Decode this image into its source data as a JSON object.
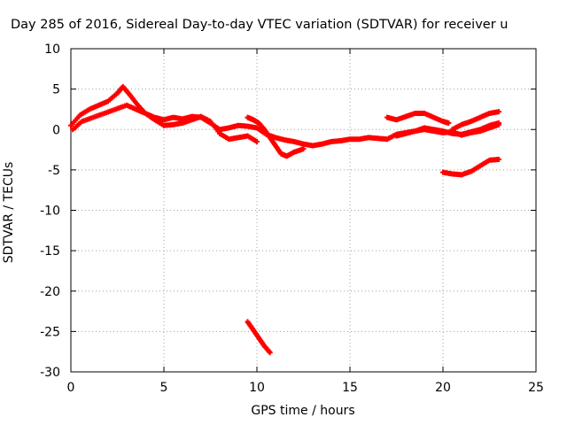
{
  "chart_data": {
    "type": "scatter",
    "title": "Day 285 of 2016, Sidereal Day-to-day VTEC variation (SDTVAR) for receiver u",
    "xlabel": "GPS time / hours",
    "ylabel": "SDTVAR / TECUs",
    "xlim": [
      0,
      25
    ],
    "ylim": [
      -30,
      10
    ],
    "xticks": [
      "0",
      "5",
      "10",
      "15",
      "20",
      "25"
    ],
    "yticks": [
      "10",
      "5",
      "0",
      "-5",
      "-10",
      "-15",
      "-20",
      "-25",
      "-30"
    ],
    "grid": true,
    "marker_color": "#ff0000",
    "series": [
      {
        "x": [
          0.0,
          0.5,
          1.0,
          1.5,
          2.0,
          2.5,
          2.8,
          3.2,
          3.6,
          4.0,
          4.5,
          5.0,
          5.5,
          6.0,
          6.5,
          7.0,
          7.5,
          8.0,
          8.5,
          9.0,
          9.5,
          10.0,
          10.5,
          11.0,
          11.5,
          12.0,
          12.5,
          13.0,
          13.5,
          14.0,
          14.5,
          15.0,
          15.5,
          16.0,
          16.5,
          17.0,
          17.5,
          18.0,
          18.5,
          19.0,
          19.5,
          20.0,
          20.5,
          21.0,
          21.5,
          22.0,
          22.5,
          23.0
        ],
        "y": [
          0.5,
          1.8,
          2.5,
          3.0,
          3.5,
          4.5,
          5.3,
          4.2,
          3.0,
          2.0,
          1.5,
          1.2,
          1.5,
          1.3,
          1.6,
          1.5,
          0.8,
          0.0,
          0.2,
          0.5,
          0.4,
          0.2,
          -0.6,
          -1.0,
          -1.3,
          -1.5,
          -1.8,
          -2.0,
          -1.8,
          -1.5,
          -1.4,
          -1.2,
          -1.2,
          -1.0,
          -1.1,
          -1.2,
          -0.6,
          -0.4,
          -0.2,
          0.0,
          -0.2,
          -0.4,
          -0.3,
          -0.7,
          -0.4,
          -0.2,
          0.2,
          0.6
        ]
      },
      {
        "x": [
          0.1,
          0.6,
          1.2,
          1.8,
          2.4,
          3.0,
          3.5,
          4.0,
          4.5,
          5.0,
          5.5,
          6.0,
          6.5,
          7.0,
          7.5,
          8.0,
          8.5,
          9.0,
          9.5,
          10.0
        ],
        "y": [
          0.0,
          1.0,
          1.5,
          2.0,
          2.5,
          3.0,
          2.5,
          2.0,
          1.2,
          0.5,
          0.6,
          0.8,
          1.2,
          1.6,
          1.0,
          -0.5,
          -1.2,
          -1.0,
          -0.8,
          -1.5
        ]
      },
      {
        "x": [
          9.5,
          9.8,
          10.1,
          10.4,
          10.7,
          11.0,
          11.3,
          11.6,
          12.0,
          12.5
        ],
        "y": [
          1.5,
          1.2,
          0.8,
          0.0,
          -1.0,
          -2.0,
          -3.0,
          -3.3,
          -2.8,
          -2.4
        ]
      },
      {
        "x": [
          17.0,
          17.5,
          18.0,
          18.5,
          19.0,
          19.5,
          20.0,
          20.3
        ],
        "y": [
          1.5,
          1.2,
          1.6,
          2.0,
          2.0,
          1.5,
          1.0,
          0.8
        ]
      },
      {
        "x": [
          17.5,
          18.0,
          18.5,
          19.0,
          19.5,
          20.0,
          20.5,
          21.0,
          21.5,
          22.0,
          22.5,
          23.0
        ],
        "y": [
          -0.8,
          -0.5,
          -0.2,
          0.2,
          0.0,
          -0.2,
          -0.5,
          -0.6,
          -0.3,
          0.0,
          0.5,
          0.8
        ]
      },
      {
        "x": [
          20.5,
          21.0,
          21.5,
          22.0,
          22.5,
          23.0
        ],
        "y": [
          0.0,
          0.6,
          1.0,
          1.5,
          2.0,
          2.2
        ]
      },
      {
        "x": [
          20.0,
          20.5,
          21.0,
          21.5,
          22.0,
          22.5,
          23.0
        ],
        "y": [
          -5.3,
          -5.5,
          -5.6,
          -5.2,
          -4.5,
          -3.8,
          -3.7
        ]
      },
      {
        "x": [
          9.5,
          9.8,
          10.1,
          10.4,
          10.7
        ],
        "y": [
          -23.8,
          -24.8,
          -25.8,
          -26.8,
          -27.6
        ]
      }
    ]
  }
}
